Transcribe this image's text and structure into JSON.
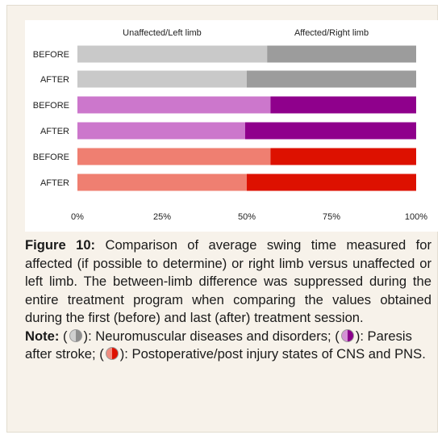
{
  "chart_data": {
    "type": "bar",
    "orientation": "horizontal",
    "stacked": true,
    "normalized": true,
    "categories": [
      "BEFORE",
      "AFTER",
      "BEFORE",
      "AFTER",
      "BEFORE",
      "AFTER"
    ],
    "series": [
      {
        "name": "Unaffected/Left limb",
        "values": [
          56,
          50,
          57,
          49.5,
          57,
          50
        ],
        "colors": [
          "#c9c9c9",
          "#c9c9c9",
          "#cc77cc",
          "#cc77cc",
          "#ef7f71",
          "#ef7f71"
        ]
      },
      {
        "name": "Affected/Right limb",
        "values": [
          44,
          50,
          43,
          50.5,
          43,
          50
        ],
        "colors": [
          "#9c9c9c",
          "#9c9c9c",
          "#8f008c",
          "#8f008c",
          "#dd1100",
          "#dd1100"
        ]
      }
    ],
    "xticks": [
      "0%",
      "25%",
      "50%",
      "75%",
      "100%"
    ],
    "xlim": [
      0,
      100
    ],
    "grid": false,
    "legend": "top"
  },
  "caption": {
    "figure_label": "Figure 10:",
    "text": " Comparison of average swing time measured for affected (if possible to determine) or right limb versus unaffected or left limb. The between-limb difference was suppressed during the entire treatment program when comparing the values obtained during the first (before) and last (after) treatment session.",
    "note_label": "Note:",
    "note_parts": [
      " (",
      "): Neuromuscular diseases and disorders; (",
      "): Paresis after stroke; (",
      "): Postoperative/post injury states of CNS and PNS."
    ],
    "symbols": [
      {
        "icon": "half-gray-circle-icon",
        "left": "#cfcfcf",
        "right": "#8e8e8e"
      },
      {
        "icon": "half-purple-circle-icon",
        "left": "#d491d4",
        "right": "#8a008a"
      },
      {
        "icon": "half-red-circle-icon",
        "left": "#f08d80",
        "right": "#dd1100"
      }
    ]
  }
}
